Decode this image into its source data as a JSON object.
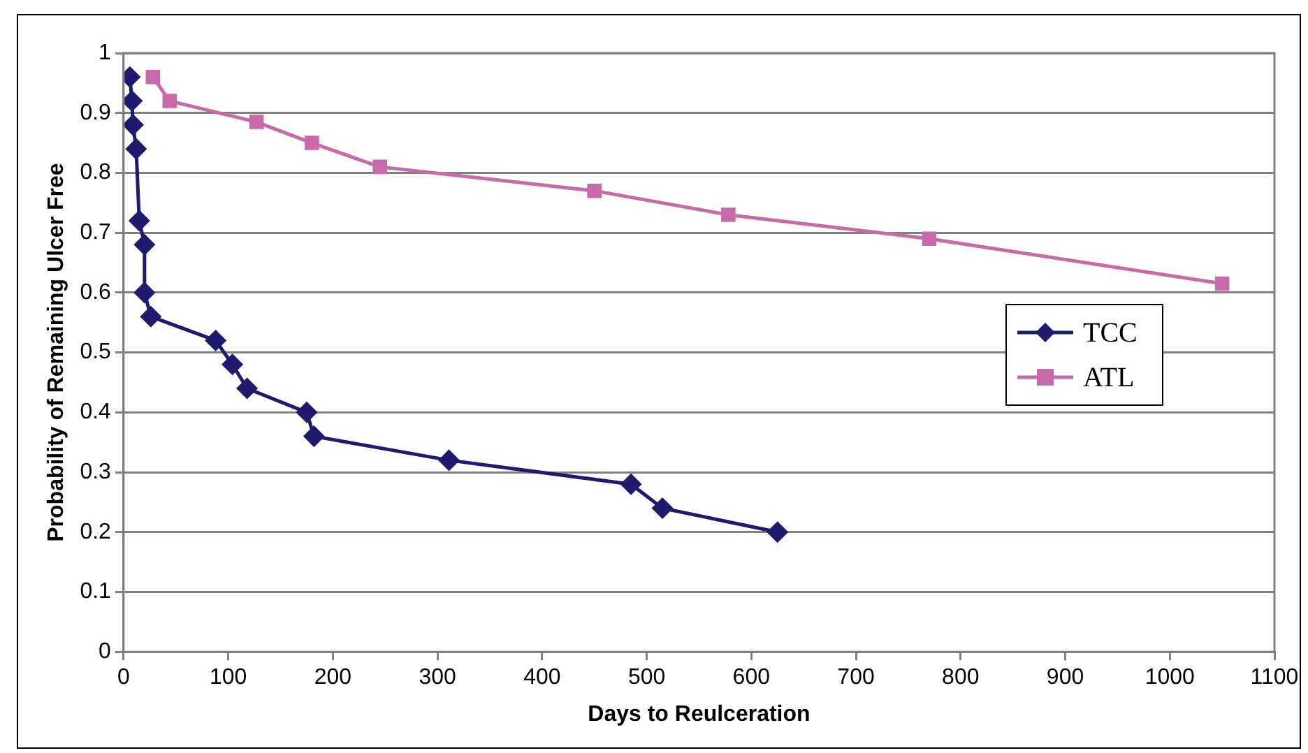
{
  "chart_data": {
    "type": "line",
    "xlabel": "Days to Reulceration",
    "ylabel": "Probability of Remaining Ulcer Free",
    "xlim": [
      0,
      1100
    ],
    "xticks": [
      0,
      100,
      200,
      300,
      400,
      500,
      600,
      700,
      800,
      900,
      1000,
      1100
    ],
    "ylim": [
      0,
      1
    ],
    "yticks": [
      0,
      0.1,
      0.2,
      0.3,
      0.4,
      0.5,
      0.6,
      0.7,
      0.8,
      0.9,
      1
    ],
    "grid": "y",
    "legend": "right",
    "series": [
      {
        "name": "TCC",
        "color": "#1f1a6e",
        "marker": "diamond",
        "x": [
          6,
          8,
          9,
          12,
          15,
          20,
          20,
          26,
          88,
          104,
          118,
          175,
          182,
          311,
          485,
          515,
          625
        ],
        "values": [
          0.96,
          0.92,
          0.88,
          0.84,
          0.72,
          0.68,
          0.6,
          0.56,
          0.52,
          0.48,
          0.44,
          0.4,
          0.36,
          0.32,
          0.28,
          0.24,
          0.2
        ]
      },
      {
        "name": "ATL",
        "color": "#c86aaa",
        "marker": "square",
        "x": [
          28,
          44,
          127,
          180,
          245,
          450,
          578,
          770,
          1050
        ],
        "values": [
          0.96,
          0.92,
          0.885,
          0.85,
          0.81,
          0.77,
          0.73,
          0.69,
          0.615
        ]
      }
    ]
  }
}
